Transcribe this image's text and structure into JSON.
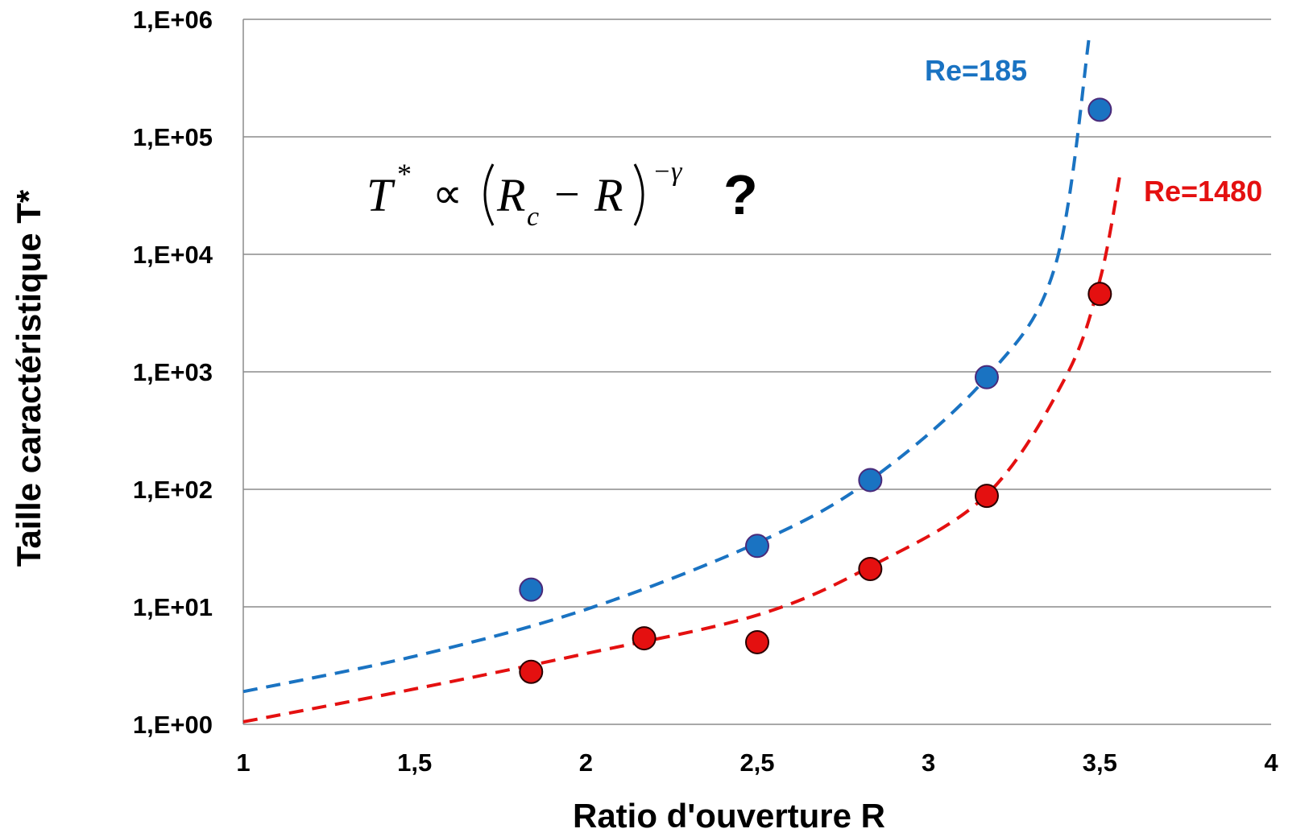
{
  "chart_data": {
    "type": "scatter",
    "title": "",
    "xlabel": "Ratio d'ouverture R",
    "ylabel": "Taille caractéristique T*",
    "xlim": [
      1,
      4
    ],
    "ylim": [
      1,
      1000000
    ],
    "yscale": "log",
    "grid": "horizontal",
    "x_ticks": [
      "1",
      "1,5",
      "2",
      "2,5",
      "3",
      "3,5",
      "4"
    ],
    "y_ticks": [
      "1,E+00",
      "1,E+01",
      "1,E+02",
      "1,E+03",
      "1,E+04",
      "1,E+05",
      "1,E+06"
    ],
    "annotation": {
      "formula": {
        "lhs": "T",
        "lhs_sup": "*",
        "prop": "∝",
        "sub_var": "R",
        "sub_idx": "c",
        "minus": "−",
        "var": "R",
        "exp": "−γ"
      },
      "question": "?"
    },
    "series": [
      {
        "name": "Re=185",
        "color": "#1a73c2",
        "x": [
          1.84,
          2.5,
          2.83,
          3.17,
          3.5
        ],
        "y": [
          14,
          33,
          120,
          900,
          170000
        ]
      },
      {
        "name": "Re=1480",
        "color": "#e41010",
        "x": [
          1.84,
          2.17,
          2.5,
          2.83,
          3.17,
          3.5
        ],
        "y": [
          2.8,
          5.4,
          5.0,
          21,
          88,
          4600
        ]
      }
    ],
    "fits": [
      {
        "series": "Re=185",
        "color": "#1a73c2",
        "style": "dashed",
        "x": [
          1.0,
          1.5,
          2.0,
          2.5,
          2.83,
          3.17,
          3.37,
          3.47
        ],
        "y": [
          1.9,
          3.8,
          9.5,
          35,
          120,
          900,
          8000,
          750000
        ]
      },
      {
        "series": "Re=1480",
        "color": "#e41010",
        "style": "dashed",
        "x": [
          1.0,
          1.5,
          2.0,
          2.5,
          2.83,
          3.17,
          3.4,
          3.5,
          3.56
        ],
        "y": [
          1.05,
          2.0,
          4.0,
          8.5,
          22,
          90,
          900,
          6000,
          50000
        ]
      }
    ]
  }
}
